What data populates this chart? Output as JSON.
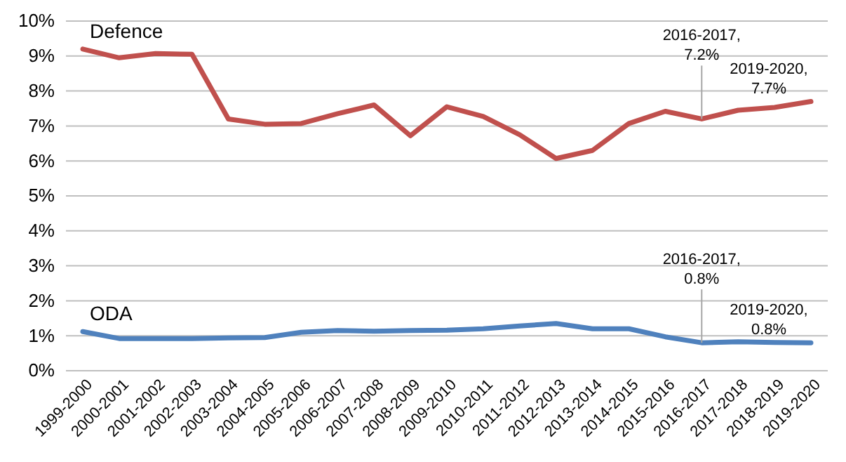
{
  "chart_data": {
    "type": "line",
    "categories": [
      "1999-2000",
      "2000-2001",
      "2001-2002",
      "2002-2003",
      "2003-2004",
      "2004-2005",
      "2005-2006",
      "2006-2007",
      "2007-2008",
      "2008-2009",
      "2009-2010",
      "2010-2011",
      "2011-2012",
      "2012-2013",
      "2013-2014",
      "2014-2015",
      "2015-2016",
      "2016-2017",
      "2017-2018",
      "2018-2019",
      "2019-2020"
    ],
    "series": [
      {
        "name": "Defence",
        "color": "#c0504d",
        "values": [
          9.2,
          8.95,
          9.07,
          9.05,
          7.2,
          7.05,
          7.07,
          7.35,
          7.6,
          6.72,
          7.55,
          7.27,
          6.75,
          6.07,
          6.3,
          7.07,
          7.42,
          7.2,
          7.45,
          7.53,
          7.7
        ]
      },
      {
        "name": "ODA",
        "color": "#4f81bd",
        "values": [
          1.12,
          0.92,
          0.92,
          0.92,
          0.94,
          0.95,
          1.1,
          1.15,
          1.13,
          1.15,
          1.16,
          1.2,
          1.28,
          1.35,
          1.2,
          1.2,
          0.97,
          0.8,
          0.83,
          0.81,
          0.8
        ]
      }
    ],
    "ylim": [
      0,
      10
    ],
    "yticks": [
      {
        "value": 0,
        "label": "0%"
      },
      {
        "value": 1,
        "label": "1%"
      },
      {
        "value": 2,
        "label": "2%"
      },
      {
        "value": 3,
        "label": "3%"
      },
      {
        "value": 4,
        "label": "4%"
      },
      {
        "value": 5,
        "label": "5%"
      },
      {
        "value": 6,
        "label": "6%"
      },
      {
        "value": 7,
        "label": "7%"
      },
      {
        "value": 8,
        "label": "8%"
      },
      {
        "value": 9,
        "label": "9%"
      },
      {
        "value": 10,
        "label": "10%"
      }
    ],
    "grid": "y",
    "legend": false,
    "annotations": [
      "2016-2017, 7.2%",
      "2019-2020, 7.7%",
      "2016-2017, 0.8%",
      "2019-2020, 0.8%"
    ]
  }
}
